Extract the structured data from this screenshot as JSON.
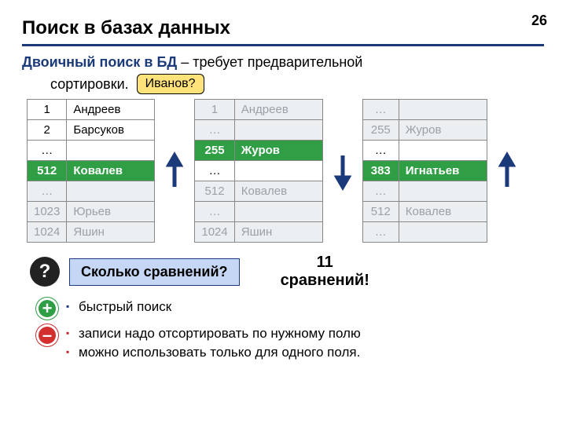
{
  "page_number": "26",
  "title": "Поиск в базах данных",
  "subtitle": {
    "highlight": "Двоичный поиск в БД",
    "rest": " – требует предварительной",
    "line2": "сортировки."
  },
  "callout": "Иванов?",
  "tables": [
    {
      "rows": [
        {
          "n": "1",
          "name": "Андреев",
          "style": ""
        },
        {
          "n": "2",
          "name": "Барсуков",
          "style": ""
        },
        {
          "n": "…",
          "name": "",
          "style": ""
        },
        {
          "n": "512",
          "name": "Ковалев",
          "style": "hl"
        },
        {
          "n": "…",
          "name": "",
          "style": "dim"
        },
        {
          "n": "1023",
          "name": "Юрьев",
          "style": "dim"
        },
        {
          "n": "1024",
          "name": "Яшин",
          "style": "dim"
        }
      ]
    },
    {
      "rows": [
        {
          "n": "1",
          "name": "Андреев",
          "style": "dim"
        },
        {
          "n": "…",
          "name": "",
          "style": "dim"
        },
        {
          "n": "255",
          "name": "Журов",
          "style": "hl"
        },
        {
          "n": "…",
          "name": "",
          "style": ""
        },
        {
          "n": "512",
          "name": "Ковалев",
          "style": "dim"
        },
        {
          "n": "…",
          "name": "",
          "style": "dim"
        },
        {
          "n": "1024",
          "name": "Яшин",
          "style": "dim"
        }
      ]
    },
    {
      "rows": [
        {
          "n": "…",
          "name": "",
          "style": "dim"
        },
        {
          "n": "255",
          "name": "Журов",
          "style": "dim"
        },
        {
          "n": "…",
          "name": "",
          "style": ""
        },
        {
          "n": "383",
          "name": "Игнатьев",
          "style": "hl"
        },
        {
          "n": "…",
          "name": "",
          "style": "dim"
        },
        {
          "n": "512",
          "name": "Ковалев",
          "style": "dim"
        },
        {
          "n": "…",
          "name": "",
          "style": "dim"
        }
      ]
    }
  ],
  "arrows": [
    {
      "dir": "up",
      "color": "#1b3a7a"
    },
    {
      "dir": "down",
      "color": "#1b3a7a"
    },
    {
      "dir": "up",
      "color": "#1b3a7a"
    }
  ],
  "question_icon": "?",
  "question": "Сколько сравнений?",
  "answer_line1": "11",
  "answer_line2": "сравнений!",
  "pros": [
    "быстрый поиск"
  ],
  "cons": [
    "записи надо отсортировать по нужному полю",
    "можно использовать только для одного поля."
  ],
  "colors": {
    "accent": "#1b3a7a",
    "highlight_row": "#2f9e44",
    "dim_bg": "#eceff1",
    "dim_text": "#9aa1a8",
    "callout_bg": "#ffe27a",
    "qbox_bg": "#c5d7f5",
    "plus": "#2f9e44",
    "minus": "#d32f2f"
  }
}
